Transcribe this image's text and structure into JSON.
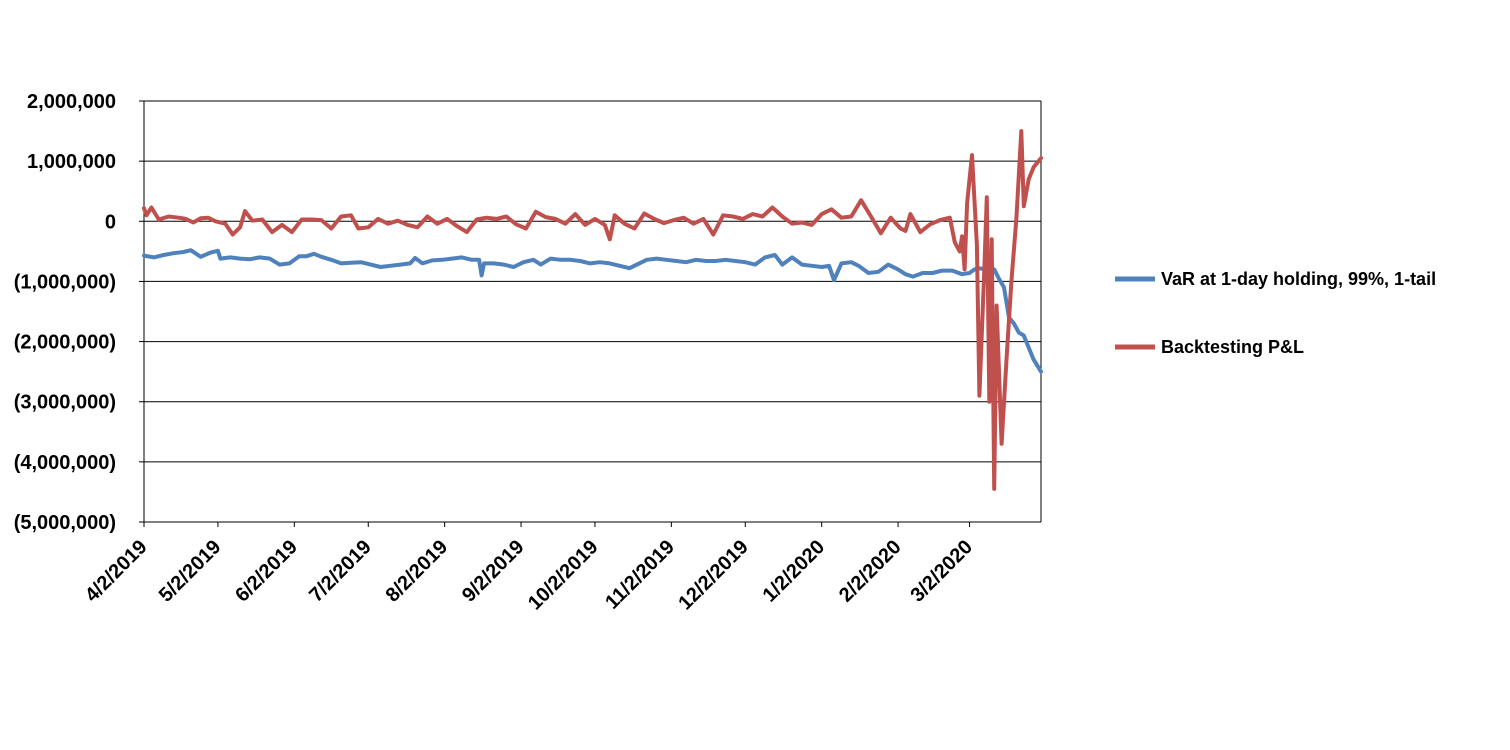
{
  "chart_data": {
    "type": "line",
    "title": "",
    "xlabel": "",
    "ylabel": "",
    "ylim": [
      -5000000,
      2000000
    ],
    "xlim": [
      "2019-04-02",
      "2020-03-31"
    ],
    "grid": "horizontal",
    "legend_position": "right",
    "y_ticks": [
      2000000,
      1000000,
      0,
      -1000000,
      -2000000,
      -3000000,
      -4000000,
      -5000000
    ],
    "y_tick_labels": [
      "2,000,000",
      "1,000,000",
      "0",
      "(1,000,000)",
      "(2,000,000)",
      "(3,000,000)",
      "(4,000,000)",
      "(5,000,000)"
    ],
    "x_ticks": [
      "2019-04-02",
      "2019-05-02",
      "2019-06-02",
      "2019-07-02",
      "2019-08-02",
      "2019-09-02",
      "2019-10-02",
      "2019-11-02",
      "2019-12-02",
      "2020-01-02",
      "2020-02-02",
      "2020-03-02"
    ],
    "x_tick_labels": [
      "4/2/2019",
      "5/2/2019",
      "6/2/2019",
      "7/2/2019",
      "8/2/2019",
      "9/2/2019",
      "10/2/2019",
      "11/2/2019",
      "12/2/2019",
      "1/2/2020",
      "2/2/2020",
      "3/2/2020"
    ],
    "series": [
      {
        "name": "VaR at 1-day holding, 99%, 1-tail",
        "color": "#4F81BD",
        "points": [
          [
            "2019-04-02",
            -570000
          ],
          [
            "2019-04-06",
            -600000
          ],
          [
            "2019-04-10",
            -560000
          ],
          [
            "2019-04-14",
            -530000
          ],
          [
            "2019-04-18",
            -510000
          ],
          [
            "2019-04-21",
            -480000
          ],
          [
            "2019-04-25",
            -590000
          ],
          [
            "2019-04-29",
            -520000
          ],
          [
            "2019-05-02",
            -490000
          ],
          [
            "2019-05-03",
            -620000
          ],
          [
            "2019-05-07",
            -600000
          ],
          [
            "2019-05-11",
            -620000
          ],
          [
            "2019-05-15",
            -630000
          ],
          [
            "2019-05-19",
            -600000
          ],
          [
            "2019-05-23",
            -620000
          ],
          [
            "2019-05-27",
            -720000
          ],
          [
            "2019-05-31",
            -700000
          ],
          [
            "2019-06-04",
            -580000
          ],
          [
            "2019-06-07",
            -580000
          ],
          [
            "2019-06-10",
            -540000
          ],
          [
            "2019-06-13",
            -590000
          ],
          [
            "2019-06-17",
            -640000
          ],
          [
            "2019-06-21",
            -700000
          ],
          [
            "2019-06-25",
            -690000
          ],
          [
            "2019-06-29",
            -680000
          ],
          [
            "2019-07-03",
            -720000
          ],
          [
            "2019-07-07",
            -760000
          ],
          [
            "2019-07-11",
            -740000
          ],
          [
            "2019-07-15",
            -720000
          ],
          [
            "2019-07-19",
            -700000
          ],
          [
            "2019-07-21",
            -610000
          ],
          [
            "2019-07-24",
            -700000
          ],
          [
            "2019-07-28",
            -650000
          ],
          [
            "2019-08-01",
            -640000
          ],
          [
            "2019-08-05",
            -620000
          ],
          [
            "2019-08-09",
            -600000
          ],
          [
            "2019-08-13",
            -640000
          ],
          [
            "2019-08-16",
            -640000
          ],
          [
            "2019-08-17",
            -900000
          ],
          [
            "2019-08-18",
            -700000
          ],
          [
            "2019-08-22",
            -700000
          ],
          [
            "2019-08-26",
            -720000
          ],
          [
            "2019-08-30",
            -760000
          ],
          [
            "2019-09-03",
            -680000
          ],
          [
            "2019-09-07",
            -640000
          ],
          [
            "2019-09-10",
            -720000
          ],
          [
            "2019-09-14",
            -620000
          ],
          [
            "2019-09-18",
            -640000
          ],
          [
            "2019-09-22",
            -640000
          ],
          [
            "2019-09-26",
            -660000
          ],
          [
            "2019-09-30",
            -700000
          ],
          [
            "2019-10-04",
            -680000
          ],
          [
            "2019-10-08",
            -700000
          ],
          [
            "2019-10-12",
            -740000
          ],
          [
            "2019-10-16",
            -780000
          ],
          [
            "2019-10-20",
            -700000
          ],
          [
            "2019-10-23",
            -640000
          ],
          [
            "2019-10-27",
            -620000
          ],
          [
            "2019-10-31",
            -640000
          ],
          [
            "2019-11-04",
            -660000
          ],
          [
            "2019-11-08",
            -680000
          ],
          [
            "2019-11-12",
            -640000
          ],
          [
            "2019-11-16",
            -660000
          ],
          [
            "2019-11-20",
            -660000
          ],
          [
            "2019-11-24",
            -640000
          ],
          [
            "2019-11-28",
            -660000
          ],
          [
            "2019-12-02",
            -680000
          ],
          [
            "2019-12-06",
            -720000
          ],
          [
            "2019-12-10",
            -600000
          ],
          [
            "2019-12-14",
            -560000
          ],
          [
            "2019-12-17",
            -720000
          ],
          [
            "2019-12-21",
            -600000
          ],
          [
            "2019-12-25",
            -720000
          ],
          [
            "2019-12-29",
            -740000
          ],
          [
            "2020-01-02",
            -760000
          ],
          [
            "2020-01-05",
            -740000
          ],
          [
            "2020-01-07",
            -980000
          ],
          [
            "2020-01-10",
            -700000
          ],
          [
            "2020-01-14",
            -680000
          ],
          [
            "2020-01-17",
            -740000
          ],
          [
            "2020-01-21",
            -860000
          ],
          [
            "2020-01-25",
            -840000
          ],
          [
            "2020-01-29",
            -720000
          ],
          [
            "2020-02-02",
            -800000
          ],
          [
            "2020-02-05",
            -880000
          ],
          [
            "2020-02-08",
            -920000
          ],
          [
            "2020-02-12",
            -860000
          ],
          [
            "2020-02-16",
            -860000
          ],
          [
            "2020-02-20",
            -820000
          ],
          [
            "2020-02-24",
            -820000
          ],
          [
            "2020-02-28",
            -880000
          ],
          [
            "2020-03-02",
            -860000
          ],
          [
            "2020-03-04",
            -800000
          ],
          [
            "2020-03-06",
            -780000
          ],
          [
            "2020-03-08",
            -800000
          ],
          [
            "2020-03-10",
            -760000
          ],
          [
            "2020-03-12",
            -800000
          ],
          [
            "2020-03-14",
            -960000
          ],
          [
            "2020-03-16",
            -1100000
          ],
          [
            "2020-03-18",
            -1600000
          ],
          [
            "2020-03-20",
            -1700000
          ],
          [
            "2020-03-22",
            -1850000
          ],
          [
            "2020-03-24",
            -1900000
          ],
          [
            "2020-03-26",
            -2100000
          ],
          [
            "2020-03-28",
            -2300000
          ],
          [
            "2020-03-31",
            -2500000
          ]
        ]
      },
      {
        "name": "Backtesting P&L",
        "color": "#C0504D",
        "points": [
          [
            "2019-04-02",
            220000
          ],
          [
            "2019-04-03",
            100000
          ],
          [
            "2019-04-05",
            230000
          ],
          [
            "2019-04-08",
            30000
          ],
          [
            "2019-04-12",
            80000
          ],
          [
            "2019-04-16",
            60000
          ],
          [
            "2019-04-19",
            40000
          ],
          [
            "2019-04-22",
            -20000
          ],
          [
            "2019-04-25",
            50000
          ],
          [
            "2019-04-28",
            60000
          ],
          [
            "2019-05-01",
            0
          ],
          [
            "2019-05-05",
            -40000
          ],
          [
            "2019-05-08",
            -220000
          ],
          [
            "2019-05-11",
            -100000
          ],
          [
            "2019-05-13",
            170000
          ],
          [
            "2019-05-16",
            10000
          ],
          [
            "2019-05-20",
            30000
          ],
          [
            "2019-05-24",
            -180000
          ],
          [
            "2019-05-28",
            -60000
          ],
          [
            "2019-06-01",
            -180000
          ],
          [
            "2019-06-05",
            30000
          ],
          [
            "2019-06-09",
            30000
          ],
          [
            "2019-06-13",
            20000
          ],
          [
            "2019-06-17",
            -120000
          ],
          [
            "2019-06-21",
            80000
          ],
          [
            "2019-06-25",
            100000
          ],
          [
            "2019-06-28",
            -120000
          ],
          [
            "2019-07-02",
            -100000
          ],
          [
            "2019-07-06",
            40000
          ],
          [
            "2019-07-10",
            -40000
          ],
          [
            "2019-07-14",
            10000
          ],
          [
            "2019-07-18",
            -60000
          ],
          [
            "2019-07-22",
            -100000
          ],
          [
            "2019-07-26",
            80000
          ],
          [
            "2019-07-30",
            -40000
          ],
          [
            "2019-08-03",
            40000
          ],
          [
            "2019-08-07",
            -80000
          ],
          [
            "2019-08-11",
            -180000
          ],
          [
            "2019-08-15",
            30000
          ],
          [
            "2019-08-19",
            60000
          ],
          [
            "2019-08-23",
            40000
          ],
          [
            "2019-08-27",
            80000
          ],
          [
            "2019-08-31",
            -50000
          ],
          [
            "2019-09-04",
            -120000
          ],
          [
            "2019-09-08",
            160000
          ],
          [
            "2019-09-12",
            70000
          ],
          [
            "2019-09-16",
            40000
          ],
          [
            "2019-09-20",
            -40000
          ],
          [
            "2019-09-24",
            120000
          ],
          [
            "2019-09-28",
            -60000
          ],
          [
            "2019-10-02",
            40000
          ],
          [
            "2019-10-06",
            -60000
          ],
          [
            "2019-10-08",
            -300000
          ],
          [
            "2019-10-10",
            100000
          ],
          [
            "2019-10-14",
            -40000
          ],
          [
            "2019-10-18",
            -120000
          ],
          [
            "2019-10-22",
            130000
          ],
          [
            "2019-10-26",
            40000
          ],
          [
            "2019-10-30",
            -30000
          ],
          [
            "2019-11-03",
            20000
          ],
          [
            "2019-11-07",
            60000
          ],
          [
            "2019-11-11",
            -40000
          ],
          [
            "2019-11-15",
            40000
          ],
          [
            "2019-11-19",
            -220000
          ],
          [
            "2019-11-23",
            100000
          ],
          [
            "2019-11-27",
            80000
          ],
          [
            "2019-12-01",
            40000
          ],
          [
            "2019-12-05",
            120000
          ],
          [
            "2019-12-09",
            80000
          ],
          [
            "2019-12-13",
            230000
          ],
          [
            "2019-12-17",
            80000
          ],
          [
            "2019-12-21",
            -40000
          ],
          [
            "2019-12-25",
            -20000
          ],
          [
            "2019-12-29",
            -60000
          ],
          [
            "2020-01-02",
            120000
          ],
          [
            "2020-01-06",
            200000
          ],
          [
            "2020-01-10",
            60000
          ],
          [
            "2020-01-14",
            80000
          ],
          [
            "2020-01-18",
            350000
          ],
          [
            "2020-01-22",
            80000
          ],
          [
            "2020-01-26",
            -200000
          ],
          [
            "2020-01-30",
            60000
          ],
          [
            "2020-02-03",
            -120000
          ],
          [
            "2020-02-05",
            -160000
          ],
          [
            "2020-02-07",
            120000
          ],
          [
            "2020-02-11",
            -180000
          ],
          [
            "2020-02-15",
            -50000
          ],
          [
            "2020-02-19",
            20000
          ],
          [
            "2020-02-23",
            60000
          ],
          [
            "2020-02-25",
            -350000
          ],
          [
            "2020-02-27",
            -500000
          ],
          [
            "2020-02-28",
            -250000
          ],
          [
            "2020-02-29",
            -800000
          ],
          [
            "2020-03-01",
            300000
          ],
          [
            "2020-03-03",
            1100000
          ],
          [
            "2020-03-05",
            -400000
          ],
          [
            "2020-03-06",
            -2900000
          ],
          [
            "2020-03-08",
            -800000
          ],
          [
            "2020-03-09",
            400000
          ],
          [
            "2020-03-10",
            -3000000
          ],
          [
            "2020-03-11",
            -300000
          ],
          [
            "2020-03-12",
            -4450000
          ],
          [
            "2020-03-13",
            -1400000
          ],
          [
            "2020-03-15",
            -3700000
          ],
          [
            "2020-03-17",
            -2300000
          ],
          [
            "2020-03-19",
            -1000000
          ],
          [
            "2020-03-21",
            50000
          ],
          [
            "2020-03-23",
            1500000
          ],
          [
            "2020-03-24",
            250000
          ],
          [
            "2020-03-26",
            700000
          ],
          [
            "2020-03-28",
            900000
          ],
          [
            "2020-03-31",
            1050000
          ]
        ]
      }
    ]
  }
}
